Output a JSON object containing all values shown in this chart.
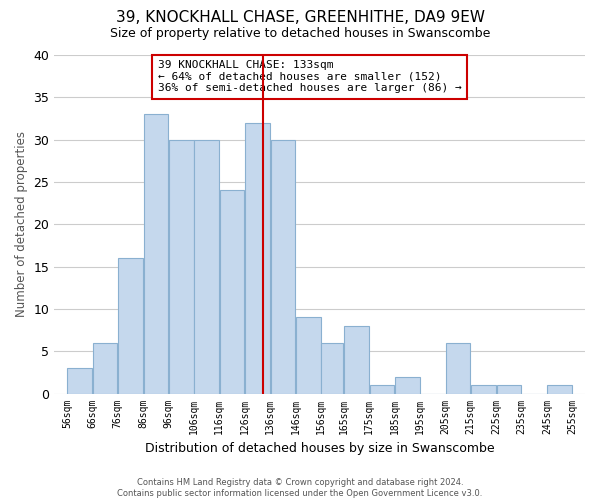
{
  "title": "39, KNOCKHALL CHASE, GREENHITHE, DA9 9EW",
  "subtitle": "Size of property relative to detached houses in Swanscombe",
  "xlabel": "Distribution of detached houses by size in Swanscombe",
  "ylabel": "Number of detached properties",
  "bar_color": "#c5d8ed",
  "bar_edge_color": "#8ab0d0",
  "bar_left_edges": [
    56,
    66,
    76,
    86,
    96,
    106,
    116,
    126,
    136,
    146,
    156,
    165,
    175,
    185,
    195,
    205,
    215,
    225,
    235,
    245
  ],
  "bar_widths": [
    10,
    10,
    10,
    10,
    10,
    10,
    10,
    10,
    10,
    10,
    9,
    10,
    10,
    10,
    10,
    10,
    10,
    10,
    10,
    10
  ],
  "bar_heights": [
    3,
    6,
    16,
    33,
    30,
    30,
    24,
    32,
    30,
    9,
    6,
    8,
    1,
    2,
    0,
    6,
    1,
    1,
    0,
    1
  ],
  "tick_labels": [
    "56sqm",
    "66sqm",
    "76sqm",
    "86sqm",
    "96sqm",
    "106sqm",
    "116sqm",
    "126sqm",
    "136sqm",
    "146sqm",
    "156sqm",
    "165sqm",
    "175sqm",
    "185sqm",
    "195sqm",
    "205sqm",
    "215sqm",
    "225sqm",
    "235sqm",
    "245sqm",
    "255sqm"
  ],
  "tick_positions": [
    56,
    66,
    76,
    86,
    96,
    106,
    116,
    126,
    136,
    146,
    156,
    165,
    175,
    185,
    195,
    205,
    215,
    225,
    235,
    245,
    255
  ],
  "ylim": [
    0,
    40
  ],
  "xlim": [
    51,
    260
  ],
  "vline_x": 133,
  "vline_color": "#cc0000",
  "annotation_title": "39 KNOCKHALL CHASE: 133sqm",
  "annotation_line1": "← 64% of detached houses are smaller (152)",
  "annotation_line2": "36% of semi-detached houses are larger (86) →",
  "annotation_box_facecolor": "#ffffff",
  "annotation_box_edge": "#cc0000",
  "footer_line1": "Contains HM Land Registry data © Crown copyright and database right 2024.",
  "footer_line2": "Contains public sector information licensed under the Open Government Licence v3.0.",
  "background_color": "#ffffff",
  "plot_bg_color": "#ffffff",
  "grid_color": "#cccccc",
  "yticks": [
    0,
    5,
    10,
    15,
    20,
    25,
    30,
    35,
    40
  ]
}
